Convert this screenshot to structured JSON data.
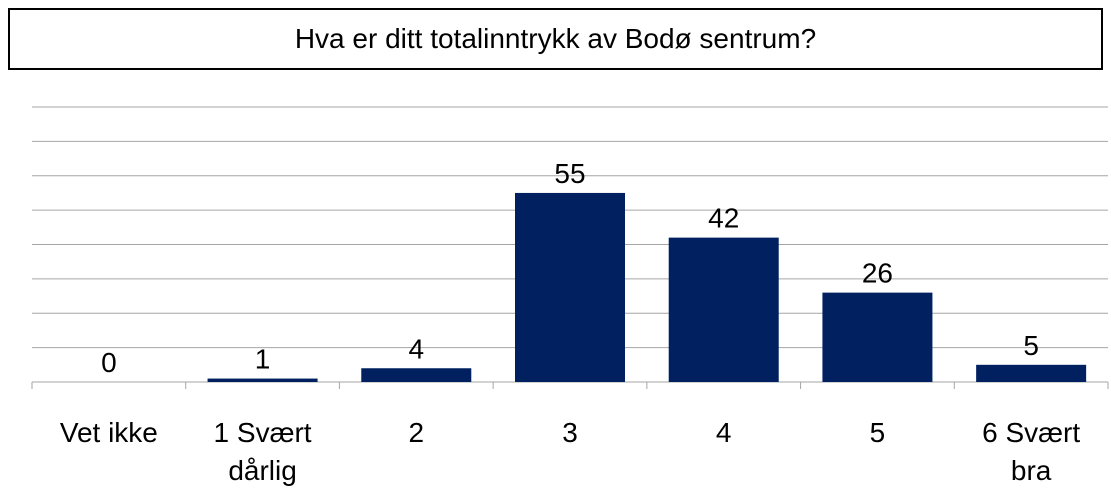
{
  "chart_data": {
    "type": "bar",
    "title": "Hva er ditt totalinntrykk av Bodø sentrum?",
    "categories": [
      "Vet ikke",
      "1 Svært dårlig",
      "2",
      "3",
      "4",
      "5",
      "6 Svært bra"
    ],
    "values": [
      0,
      1,
      4,
      55,
      42,
      26,
      5
    ],
    "color": "#002060",
    "ylim": [
      0,
      80
    ],
    "yticks": [
      0,
      10,
      20,
      30,
      40,
      50,
      60,
      70,
      80
    ],
    "grid": true
  }
}
